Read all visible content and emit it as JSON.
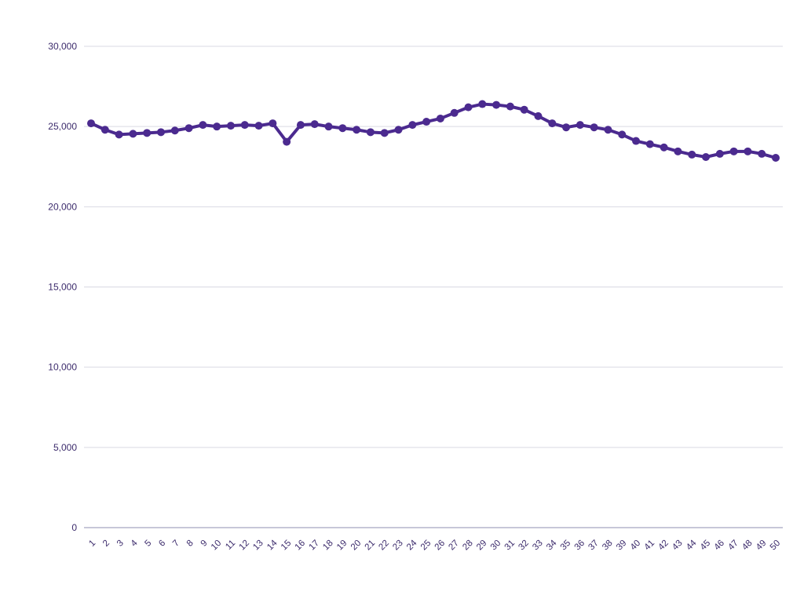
{
  "chart_data": {
    "type": "line",
    "title": "",
    "xlabel": "",
    "ylabel": "",
    "ylim": [
      0,
      30000
    ],
    "yticks": [
      0,
      5000,
      10000,
      15000,
      20000,
      25000,
      30000
    ],
    "ytick_labels": [
      "0",
      "5,000",
      "10,000",
      "15,000",
      "20,000",
      "25,000",
      "30,000"
    ],
    "grid": true,
    "legend": "none",
    "colors": {
      "series": "#4b2a8f",
      "grid": "#d9d9e3",
      "text": "#3b2a6b"
    },
    "x": [
      "1",
      "2",
      "3",
      "4",
      "5",
      "6",
      "7",
      "8",
      "9",
      "10",
      "11",
      "12",
      "13",
      "14",
      "15",
      "16",
      "17",
      "18",
      "19",
      "20",
      "21",
      "22",
      "23",
      "24",
      "25",
      "26",
      "27",
      "28",
      "29",
      "30",
      "31",
      "32",
      "33",
      "34",
      "35",
      "36",
      "37",
      "38",
      "39",
      "40",
      "41",
      "42",
      "43",
      "44",
      "45",
      "46",
      "47",
      "48",
      "49",
      "50"
    ],
    "series": [
      {
        "values": [
          25200,
          24800,
          24500,
          24550,
          24600,
          24650,
          24750,
          24900,
          25100,
          25000,
          25050,
          25100,
          25050,
          25200,
          24050,
          25100,
          25150,
          25000,
          24900,
          24800,
          24650,
          24600,
          24800,
          25100,
          25300,
          25500,
          25850,
          26200,
          26400,
          26350,
          26250,
          26050,
          25650,
          25200,
          24950,
          25100,
          24950,
          24800,
          24500,
          24100,
          23900,
          23700,
          23450,
          23250,
          23100,
          23300,
          23450,
          23450,
          23300,
          23050
        ]
      }
    ]
  }
}
